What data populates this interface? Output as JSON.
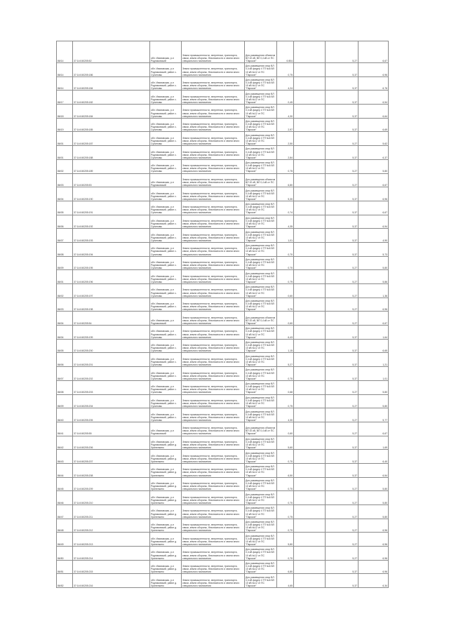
{
  "texts": {
    "category": "Земли промышленности, энергетики, транспорта, связи, земли обороны, безопасности и земли иного специального назначения",
    "addr_short": "обл. Ивановская, р-н Родниковский",
    "addr_a": "обл. Ивановская, р-н Родниковский, район с. Сулиновы",
    "addr_b": "обл. Ивановская, р-н Родниковский, район д. Хрипелкино",
    "purpose_a": "Для размещения объектов ВЛ 10 кВ, ВЛ 0,4 кВ от ПС \"Парское\"",
    "purpose_b": "Для размещения опор ВЛ 0,4 кВ фидер 4 ТП №6 ВЛ 10 кВ №12 от ПС \"Парское\""
  },
  "rows": [
    {
      "id": "86/14",
      "cad": "37:14:040205:52",
      "addr": "addr_short",
      "purpose": "purpose_a",
      "area": "6 804",
      "v1": "5,27",
      "v2": "6,67"
    },
    {
      "id": "86/14",
      "cad": "37:14:040205:186",
      "addr": "addr_a",
      "purpose": "purpose_b",
      "area": "0,75",
      "v1": "5,37",
      "v2": "6,96"
    },
    {
      "id": "86/14",
      "cad": "37:14:040205:184",
      "addr": "addr_a",
      "purpose": "purpose_b",
      "area": "4,24",
      "v1": "5,37",
      "v2": "6,76"
    },
    {
      "id": "86/17",
      "cad": "37:14:040205:182",
      "addr": "addr_a",
      "purpose": "purpose_b",
      "area": "0,45",
      "v1": "5,37",
      "v2": "6,54"
    },
    {
      "id": "86/18",
      "cad": "37:14:040205:184",
      "addr": "addr_a",
      "purpose": "purpose_b",
      "area": "4,30",
      "v1": "5,37",
      "v2": "6,64"
    },
    {
      "id": "86/19",
      "cad": "37:14:040205:185",
      "addr": "addr_a",
      "purpose": "purpose_b",
      "area": "2,97",
      "v1": "5,37",
      "v2": "6,69"
    },
    {
      "id": "86/01",
      "cad": "37:14:040205:187",
      "addr": "addr_a",
      "purpose": "purpose_b",
      "area": "2,50",
      "v1": "5,27",
      "v2": "5,62"
    },
    {
      "id": "86/01",
      "cad": "37:14:040205:188",
      "addr": "addr_a",
      "purpose": "purpose_b",
      "area": "2,84",
      "v1": "5,37",
      "v2": "6,37"
    },
    {
      "id": "86/02",
      "cad": "37:14:040205:189",
      "addr": "addr_a",
      "purpose": "purpose_b",
      "area": "0,75",
      "v1": "5,27",
      "v2": "5,80"
    },
    {
      "id": "86/03",
      "cad": "37:14:040205:53",
      "addr": "addr_short",
      "purpose": "purpose_a",
      "area": "6,80",
      "v1": "5,27",
      "v2": "6,67"
    },
    {
      "id": "86/04",
      "cad": "37:14:040205:190",
      "addr": "addr_a",
      "purpose": "purpose_b",
      "area": "5,30",
      "v1": "5,37",
      "v2": "6,96"
    },
    {
      "id": "86/05",
      "cad": "37:14:040205:191",
      "addr": "addr_a",
      "purpose": "purpose_b",
      "area": "0,74",
      "v1": "5,37",
      "v2": "6,67"
    },
    {
      "id": "86/06",
      "cad": "37:14:040205:192",
      "addr": "addr_a",
      "purpose": "purpose_b",
      "area": "4,35",
      "v1": "5,37",
      "v2": "6,94"
    },
    {
      "id": "86/07",
      "cad": "37:14:040205:193",
      "addr": "addr_a",
      "purpose": "purpose_b",
      "area": "1,01",
      "v1": "5,37",
      "v2": "4,90"
    },
    {
      "id": "86/08",
      "cad": "37:14:040205:194",
      "addr": "addr_a",
      "purpose": "purpose_b",
      "area": "0,70",
      "v1": "5,37",
      "v2": "5,73"
    },
    {
      "id": "86/09",
      "cad": "37:14:040205:195",
      "addr": "addr_a",
      "purpose": "purpose_b",
      "area": "0,70",
      "v1": "5,27",
      "v2": "5,80"
    },
    {
      "id": "86/01",
      "cad": "37:14:040205:196",
      "addr": "addr_a",
      "purpose": "purpose_b",
      "area": "0,79",
      "v1": "5,27",
      "v2": "5,86"
    },
    {
      "id": "86/02",
      "cad": "37:14:040205:197",
      "addr": "addr_a",
      "purpose": "purpose_b",
      "area": "0,60",
      "v1": "5,27",
      "v2": "1,36"
    },
    {
      "id": "86/03",
      "cad": "37:14:040205:198",
      "addr": "addr_a",
      "purpose": "purpose_b",
      "area": "0,70",
      "v1": "5,27",
      "v2": "6,96"
    },
    {
      "id": "86/04",
      "cad": "37:14:040205:54",
      "addr": "addr_short",
      "purpose": "purpose_a",
      "area": "0,60",
      "v1": "5,27",
      "v2": "6,67"
    },
    {
      "id": "86/04",
      "cad": "37:14:040205:199",
      "addr": "addr_a",
      "purpose": "purpose_b",
      "area": "6,43",
      "v1": "5,37",
      "v2": "1,64"
    },
    {
      "id": "86/05",
      "cad": "37:14:040205:200",
      "addr": "addr_a",
      "purpose": "purpose_b",
      "area": "1,15",
      "v1": "5,37",
      "v2": "6,65"
    },
    {
      "id": "86/06",
      "cad": "37:14:040205:201",
      "addr": "addr_a",
      "purpose": "purpose_b",
      "area": "5,27",
      "v1": "5,37",
      "v2": "1,21"
    },
    {
      "id": "86/07",
      "cad": "37:14:040205:202",
      "addr": "addr_a",
      "purpose": "purpose_b",
      "area": "0,70",
      "v1": "5,37",
      "v2": "1,01"
    },
    {
      "id": "86/08",
      "cad": "37:14:040205:203",
      "addr": "addr_a",
      "purpose": "purpose_b",
      "area": "0,68",
      "v1": "5,27",
      "v2": "5,80"
    },
    {
      "id": "86/09",
      "cad": "37:14:040205:204",
      "addr": "addr_a",
      "purpose": "purpose_b",
      "area": "0,75",
      "v1": "5,27",
      "v2": "5,80"
    },
    {
      "id": "86/40",
      "cad": "37:14:040205:205",
      "addr": "addr_a",
      "purpose": "purpose_b",
      "area": "4,30",
      "v1": "5,27",
      "v2": "5,77"
    },
    {
      "id": "86/41",
      "cad": "37:14:040205:55",
      "addr": "addr_short",
      "purpose": "purpose_a",
      "area": "0,60",
      "v1": "5,27",
      "v2": "6,67"
    },
    {
      "id": "86/42",
      "cad": "37:14:040205:206",
      "addr": "addr_b",
      "purpose": "purpose_b",
      "area": "5,60",
      "v1": "5,37",
      "v2": "1,69"
    },
    {
      "id": "86/43",
      "cad": "37:14:040205:207",
      "addr": "addr_b",
      "purpose": "purpose_b",
      "area": "0,70",
      "v1": "5,37",
      "v2": "6,40"
    },
    {
      "id": "86/44",
      "cad": "37:14:040205:208",
      "addr": "addr_b",
      "purpose": "purpose_b",
      "area": "6,50",
      "v1": "5,37",
      "v2": "6,54"
    },
    {
      "id": "86/45",
      "cad": "37:14:040205:209",
      "addr": "addr_b",
      "purpose": "purpose_b",
      "area": "0,70",
      "v1": "5,27",
      "v2": "5,80"
    },
    {
      "id": "86/46",
      "cad": "37:14:040205:210",
      "addr": "addr_b",
      "purpose": "purpose_b",
      "area": "0,70",
      "v1": "5,27",
      "v2": "5,80"
    },
    {
      "id": "86/47",
      "cad": "37:14:040205:211",
      "addr": "addr_b",
      "purpose": "purpose_b",
      "area": "0,75",
      "v1": "5,27",
      "v2": "5,80"
    },
    {
      "id": "86/48",
      "cad": "37:14:040205:212",
      "addr": "addr_b",
      "purpose": "purpose_b",
      "area": "0,70",
      "v1": "5,27",
      "v2": "6,96"
    },
    {
      "id": "86/49",
      "cad": "37:14:040205:213",
      "addr": "addr_b",
      "purpose": "purpose_b",
      "area": "5,80",
      "v1": "5,27",
      "v2": "6,96"
    },
    {
      "id": "86/50",
      "cad": "37:14:040205:214",
      "addr": "addr_b",
      "purpose": "purpose_b",
      "area": "0,70",
      "v1": "5,27",
      "v2": "6,96"
    },
    {
      "id": "86/51",
      "cad": "37:14:040205:215",
      "addr": "addr_b",
      "purpose": "purpose_b",
      "area": "6,80",
      "v1": "5,37",
      "v2": "6,96"
    },
    {
      "id": "86/52",
      "cad": "37:14:040205:216",
      "addr": "addr_b",
      "purpose": "purpose_b",
      "area": "4,65",
      "v1": "5,37",
      "v2": "6,34"
    }
  ]
}
